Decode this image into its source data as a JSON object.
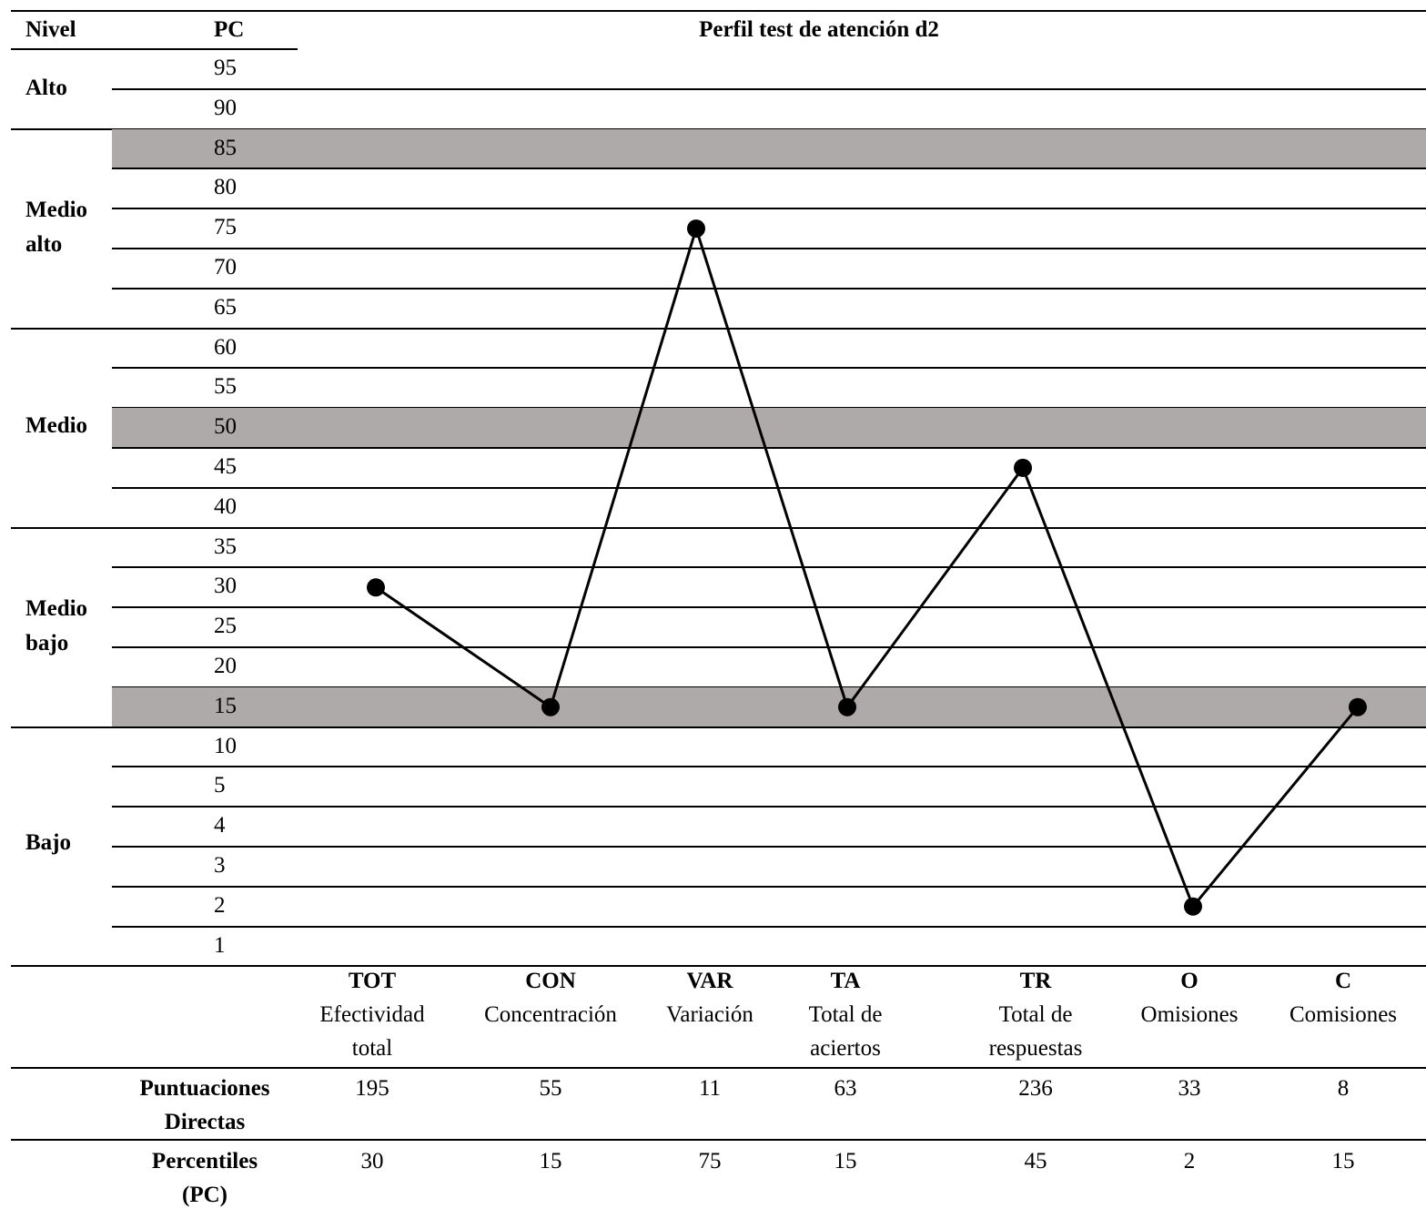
{
  "header": {
    "nivel": "Nivel",
    "pc": "PC",
    "title": "Perfil test de atención d2"
  },
  "levels": [
    {
      "name": "Alto"
    },
    {
      "name": "Medio alto"
    },
    {
      "name": "Medio"
    },
    {
      "name": "Medio bajo"
    },
    {
      "name": "Bajo"
    }
  ],
  "pc_scale": [
    "95",
    "90",
    "85",
    "80",
    "75",
    "70",
    "65",
    "60",
    "55",
    "50",
    "45",
    "40",
    "35",
    "30",
    "25",
    "20",
    "15",
    "10",
    "5",
    "4",
    "3",
    "2",
    "1"
  ],
  "highlighted_rows": [
    "85",
    "50",
    "15"
  ],
  "measures": [
    {
      "code": "TOT",
      "desc": [
        "Efectividad",
        "total"
      ],
      "pd": "195",
      "pc": "30"
    },
    {
      "code": "CON",
      "desc": [
        "Concentración"
      ],
      "pd": "55",
      "pc": "15"
    },
    {
      "code": "VAR",
      "desc": [
        "Variación"
      ],
      "pd": "11",
      "pc": "75"
    },
    {
      "code": "TA",
      "desc": [
        "Total de",
        "aciertos"
      ],
      "pd": "63",
      "pc": "15"
    },
    {
      "code": "TR",
      "desc": [
        "Total de",
        "respuestas"
      ],
      "pd": "236",
      "pc": "45"
    },
    {
      "code": "O",
      "desc": [
        "Omisiones"
      ],
      "pd": "33",
      "pc": "2"
    },
    {
      "code": "C",
      "desc": [
        "Comisiones"
      ],
      "pd": "8",
      "pc": "15"
    }
  ],
  "rows": {
    "pd_label": [
      "Puntuaciones",
      "Directas"
    ],
    "pc_label": [
      "Percentiles",
      "(PC)"
    ]
  },
  "chart_data": {
    "type": "line",
    "title": "Perfil test de atención d2",
    "ylabel": "PC",
    "categories": [
      "TOT",
      "CON",
      "VAR",
      "TA",
      "TR",
      "O",
      "C"
    ],
    "values": [
      30,
      15,
      75,
      15,
      45,
      2,
      15
    ],
    "y_ticks": [
      95,
      90,
      85,
      80,
      75,
      70,
      65,
      60,
      55,
      50,
      45,
      40,
      35,
      30,
      25,
      20,
      15,
      10,
      5,
      4,
      3,
      2,
      1
    ],
    "legend": "none"
  }
}
